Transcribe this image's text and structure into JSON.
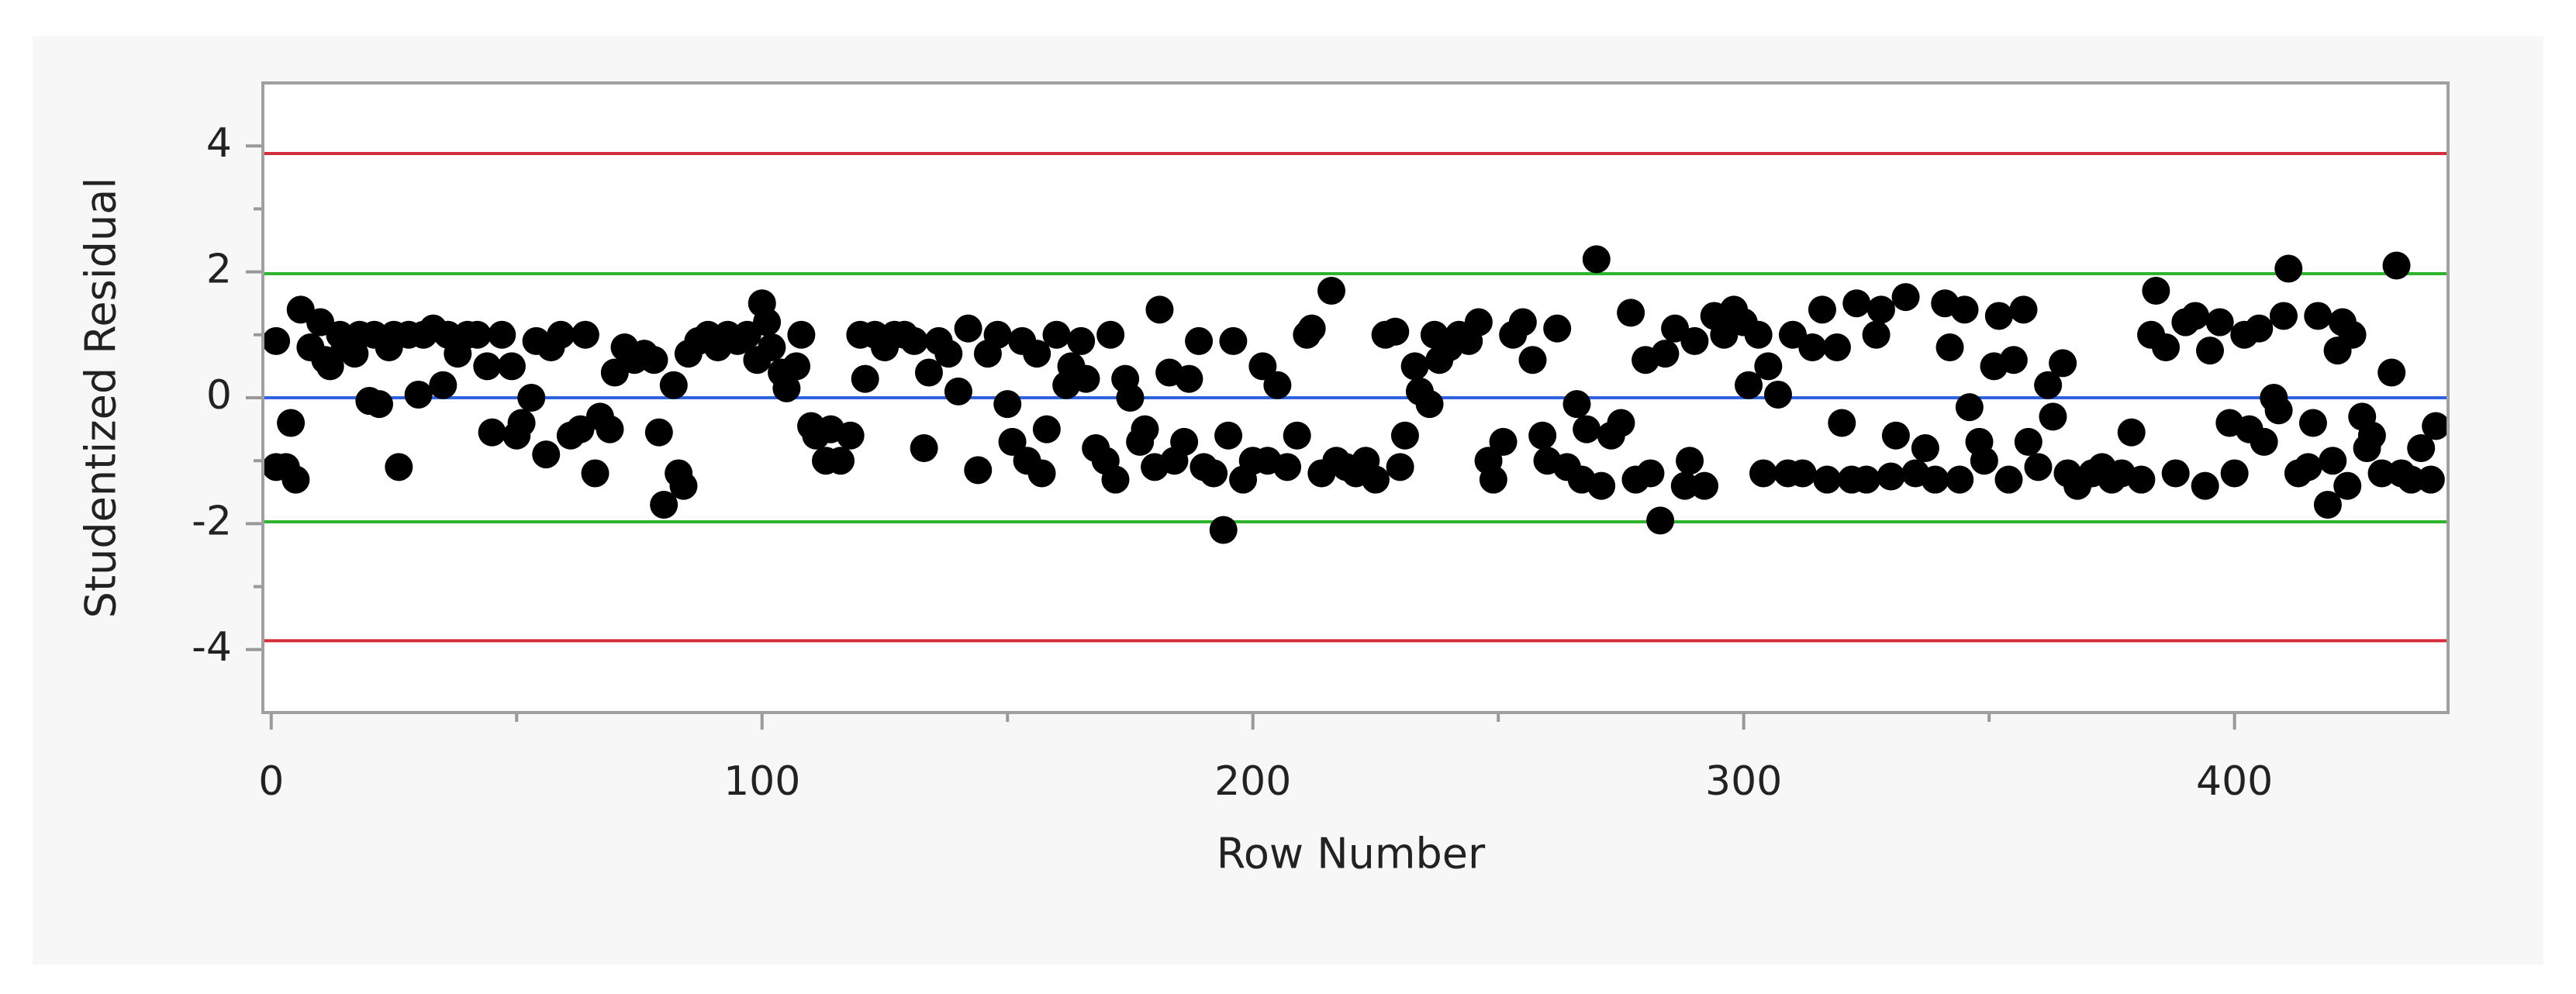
{
  "chart_data": {
    "type": "scatter",
    "xlabel": "Row Number",
    "ylabel": "Studentized Residual",
    "xlim": [
      -1.7,
      443.5
    ],
    "ylim": [
      -5,
      5
    ],
    "xticks": [
      0,
      100,
      200,
      300,
      400
    ],
    "yticks": [
      -4,
      -2,
      0,
      2,
      4
    ],
    "xminorticks": [
      50,
      150,
      250,
      350
    ],
    "yminorticks": [
      -3,
      -1,
      1,
      3
    ],
    "color": "#000000",
    "reference_lines": [
      {
        "value": 3.88,
        "color": "#d62d3c"
      },
      {
        "value": 1.97,
        "color": "#2db52d"
      },
      {
        "value": 0,
        "color": "#2e62e0"
      },
      {
        "value": -1.97,
        "color": "#2db52d"
      },
      {
        "value": -3.86,
        "color": "#d62d3c"
      }
    ],
    "x": [
      1,
      1,
      3,
      4,
      5,
      6,
      8,
      10,
      11,
      12,
      14,
      15,
      17,
      18,
      20,
      21,
      22,
      24,
      25,
      26,
      28,
      30,
      31,
      33,
      35,
      36,
      38,
      40,
      42,
      44,
      45,
      47,
      49,
      50,
      51,
      53,
      54,
      56,
      57,
      59,
      61,
      63,
      64,
      66,
      67,
      69,
      70,
      72,
      74,
      76,
      78,
      79,
      80,
      82,
      83,
      84,
      85,
      87,
      89,
      91,
      93,
      95,
      97,
      99,
      100,
      101,
      102,
      104,
      105,
      107,
      108,
      110,
      111,
      113,
      114,
      116,
      118,
      120,
      121,
      123,
      125,
      127,
      129,
      131,
      133,
      134,
      136,
      138,
      140,
      142,
      144,
      146,
      148,
      150,
      151,
      153,
      154,
      156,
      157,
      158,
      160,
      162,
      163,
      165,
      166,
      168,
      170,
      171,
      172,
      174,
      175,
      177,
      178,
      180,
      181,
      183,
      184,
      186,
      187,
      189,
      190,
      192,
      194,
      195,
      196,
      198,
      200,
      202,
      203,
      205,
      207,
      209,
      211,
      212,
      214,
      216,
      217,
      219,
      221,
      223,
      225,
      227,
      229,
      230,
      231,
      233,
      234,
      236,
      237,
      238,
      240,
      242,
      244,
      246,
      248,
      249,
      251,
      253,
      255,
      257,
      259,
      260,
      262,
      264,
      266,
      267,
      268,
      270,
      271,
      273,
      275,
      277,
      278,
      280,
      281,
      283,
      284,
      286,
      288,
      289,
      290,
      292,
      294,
      296,
      298,
      300,
      301,
      303,
      304,
      305,
      307,
      309,
      310,
      312,
      314,
      316,
      317,
      319,
      320,
      322,
      323,
      325,
      327,
      328,
      330,
      331,
      333,
      335,
      337,
      339,
      341,
      342,
      344,
      345,
      346,
      348,
      349,
      351,
      352,
      354,
      355,
      357,
      358,
      360,
      362,
      363,
      365,
      366,
      368,
      371,
      373,
      375,
      377,
      379,
      381,
      383,
      384,
      386,
      388,
      390,
      392,
      394,
      395,
      397,
      399,
      400,
      402,
      403,
      405,
      406,
      408,
      409,
      410,
      411,
      413,
      415,
      416,
      417,
      419,
      420,
      421,
      422,
      423,
      424,
      426,
      427,
      428,
      430,
      432,
      433,
      434,
      436,
      438,
      440,
      441
    ],
    "values": [
      0.9,
      -1.1,
      -1.1,
      -0.4,
      -1.3,
      1.4,
      0.8,
      1.2,
      0.6,
      0.5,
      1.0,
      0.8,
      0.7,
      1.0,
      -0.05,
      1.0,
      -0.1,
      0.8,
      1.0,
      -1.1,
      1.0,
      0.05,
      1.0,
      1.1,
      0.2,
      1.0,
      0.7,
      1.0,
      1.0,
      0.5,
      -0.55,
      1.0,
      0.5,
      -0.6,
      -0.4,
      0.0,
      0.9,
      -0.9,
      0.8,
      1.0,
      -0.6,
      -0.5,
      1.0,
      -1.2,
      -0.3,
      -0.5,
      0.4,
      0.8,
      0.6,
      0.7,
      0.6,
      -0.55,
      -1.7,
      0.2,
      -1.2,
      -1.4,
      0.7,
      0.9,
      1.0,
      0.8,
      1.0,
      0.9,
      1.0,
      0.6,
      1.5,
      1.2,
      0.8,
      0.4,
      0.15,
      0.5,
      1.0,
      -0.45,
      -0.6,
      -1.0,
      -0.5,
      -1.0,
      -0.6,
      1.0,
      0.3,
      1.0,
      0.8,
      1.0,
      1.0,
      0.9,
      -0.8,
      0.4,
      0.9,
      0.7,
      0.1,
      1.1,
      -1.15,
      0.7,
      1.0,
      -0.1,
      -0.7,
      0.9,
      -1.0,
      0.7,
      -1.2,
      -0.5,
      1.0,
      0.2,
      0.5,
      0.9,
      0.3,
      -0.8,
      -1.0,
      1.0,
      -1.3,
      0.3,
      0.0,
      -0.7,
      -0.5,
      -1.1,
      1.4,
      0.4,
      -1.0,
      -0.7,
      0.3,
      0.9,
      -1.1,
      -1.2,
      -2.1,
      -0.6,
      0.9,
      -1.3,
      -1.0,
      0.5,
      -1.0,
      0.2,
      -1.1,
      -0.6,
      1.0,
      1.1,
      -1.2,
      1.7,
      -1.0,
      -1.1,
      -1.2,
      -1.0,
      -1.3,
      1.0,
      1.05,
      -1.1,
      -0.6,
      0.5,
      0.1,
      -0.1,
      1.0,
      0.6,
      0.8,
      1.0,
      0.9,
      1.2,
      -1.0,
      -1.3,
      -0.7,
      1.0,
      1.2,
      0.6,
      -0.6,
      -1.0,
      1.1,
      -1.1,
      -0.1,
      -1.3,
      -0.5,
      2.2,
      -1.4,
      -0.6,
      -0.4,
      1.35,
      -1.3,
      0.6,
      -1.2,
      -1.95,
      0.7,
      1.1,
      -1.4,
      -1.0,
      0.9,
      -1.4,
      1.3,
      1.0,
      1.4,
      1.2,
      0.2,
      1.0,
      -1.2,
      0.5,
      0.05,
      -1.2,
      1.0,
      -1.2,
      0.8,
      1.4,
      -1.3,
      0.8,
      -0.4,
      -1.3,
      1.5,
      -1.3,
      1.0,
      1.4,
      -1.25,
      -0.6,
      1.6,
      -1.2,
      -0.8,
      -1.3,
      1.5,
      0.8,
      -1.3,
      1.4,
      -0.15,
      -0.7,
      -1.0,
      0.5,
      1.3,
      -1.3,
      0.6,
      1.4,
      -0.7,
      -1.1,
      0.2,
      -0.3,
      0.55,
      -1.2,
      -1.4,
      -1.2,
      -1.1,
      -1.3,
      -1.2,
      -0.55,
      -1.3,
      1.0,
      1.7,
      0.8,
      -1.2,
      1.2,
      1.3,
      -1.4,
      0.75,
      1.2,
      -0.4,
      -1.2,
      1.0,
      -0.5,
      1.1,
      -0.7,
      0.0,
      -0.2,
      1.3,
      2.05,
      -1.2,
      -1.1,
      -0.4,
      1.3,
      -1.7,
      -1.0,
      0.75,
      1.2,
      -1.4,
      1.0,
      -0.3,
      -0.8,
      -0.6,
      -1.2,
      0.4,
      2.1,
      -1.2,
      -1.3,
      -0.8,
      -1.3,
      -0.45
    ]
  }
}
